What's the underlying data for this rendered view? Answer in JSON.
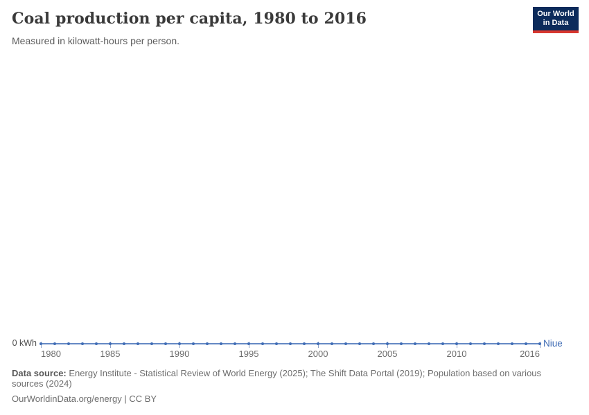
{
  "header": {
    "title": "Coal production per capita, 1980 to 2016",
    "subtitle": "Measured in kilowatt-hours per person."
  },
  "logo": {
    "line1": "Our World",
    "line2": "in Data",
    "background_color": "#0c2b5b",
    "accent_color": "#d8372f"
  },
  "chart_data": {
    "type": "line",
    "title": "Coal production per capita, 1980 to 2016",
    "subtitle": "Measured in kilowatt-hours per person.",
    "unit": "kilowatt-hours per person",
    "x": [
      1980,
      1981,
      1982,
      1983,
      1984,
      1985,
      1986,
      1987,
      1988,
      1989,
      1990,
      1991,
      1992,
      1993,
      1994,
      1995,
      1996,
      1997,
      1998,
      1999,
      2000,
      2001,
      2002,
      2003,
      2004,
      2005,
      2006,
      2007,
      2008,
      2009,
      2010,
      2011,
      2012,
      2013,
      2014,
      2015,
      2016
    ],
    "series": [
      {
        "name": "Niue",
        "color": "#3f6cb5",
        "values": [
          0,
          0,
          0,
          0,
          0,
          0,
          0,
          0,
          0,
          0,
          0,
          0,
          0,
          0,
          0,
          0,
          0,
          0,
          0,
          0,
          0,
          0,
          0,
          0,
          0,
          0,
          0,
          0,
          0,
          0,
          0,
          0,
          0,
          0,
          0,
          0,
          0
        ]
      }
    ],
    "x_tick_labels": [
      "1980",
      "1985",
      "1990",
      "1995",
      "2000",
      "2005",
      "2010",
      "2016"
    ],
    "y_zero_label": "0 kWh",
    "ylim": [
      0,
      0
    ],
    "grid": false,
    "legend": "end-of-line-label"
  },
  "footer": {
    "source_label": "Data source:",
    "source_text": "Energy Institute - Statistical Review of World Energy (2025); The Shift Data Portal (2019); Population based on various sources (2024)",
    "link_line": "OurWorldinData.org/energy | CC BY"
  }
}
